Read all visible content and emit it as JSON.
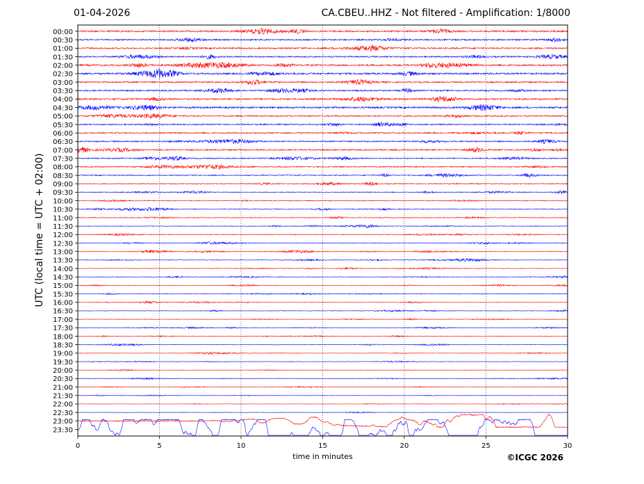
{
  "header": {
    "date": "01-04-2026",
    "title": "CA.CBEU..HHZ - Not filtered - Amplification: 1/8000"
  },
  "footer": {
    "copyright": "©ICGC 2026"
  },
  "chart_data": {
    "type": "line",
    "title": "CA.CBEU..HHZ - Not filtered - Amplification: 1/8000",
    "xlabel": "time in minutes",
    "ylabel": "UTC (local time = UTC + 02:00)",
    "xlim": [
      0,
      30
    ],
    "x_ticks": [
      0,
      5,
      10,
      15,
      20,
      25,
      30
    ],
    "grid": "vertical dotted at x ticks",
    "colors": {
      "even_rows": "#ff0000",
      "odd_rows": "#0000ff",
      "axes": "#000000"
    },
    "row_labels": [
      "00:00",
      "00:30",
      "01:00",
      "01:30",
      "02:00",
      "02:30",
      "03:00",
      "03:30",
      "04:00",
      "04:30",
      "05:00",
      "05:30",
      "06:00",
      "06:30",
      "07:00",
      "07:30",
      "08:00",
      "08:30",
      "09:00",
      "09:30",
      "10:00",
      "10:30",
      "11:00",
      "11:30",
      "12:00",
      "12:30",
      "13:00",
      "13:30",
      "14:00",
      "14:30",
      "15:00",
      "15:30",
      "16:00",
      "16:30",
      "17:00",
      "17:30",
      "18:00",
      "18:30",
      "19:00",
      "19:30",
      "20:00",
      "20:30",
      "21:00",
      "21:30",
      "22:00",
      "22:30",
      "23:00",
      "23:30"
    ],
    "row_activity": [
      1.2,
      1.0,
      1.1,
      1.0,
      1.2,
      1.3,
      1.1,
      1.0,
      1.2,
      1.3,
      1.0,
      0.9,
      1.0,
      0.9,
      1.0,
      0.8,
      0.8,
      0.7,
      0.7,
      0.6,
      0.55,
      0.5,
      0.55,
      0.45,
      0.5,
      0.45,
      0.4,
      0.4,
      0.4,
      0.4,
      0.35,
      0.4,
      0.35,
      0.35,
      0.4,
      0.35,
      0.35,
      0.35,
      0.3,
      0.3,
      0.3,
      0.3,
      0.25,
      0.25,
      0.2,
      0.25,
      2.5,
      4.5
    ]
  }
}
